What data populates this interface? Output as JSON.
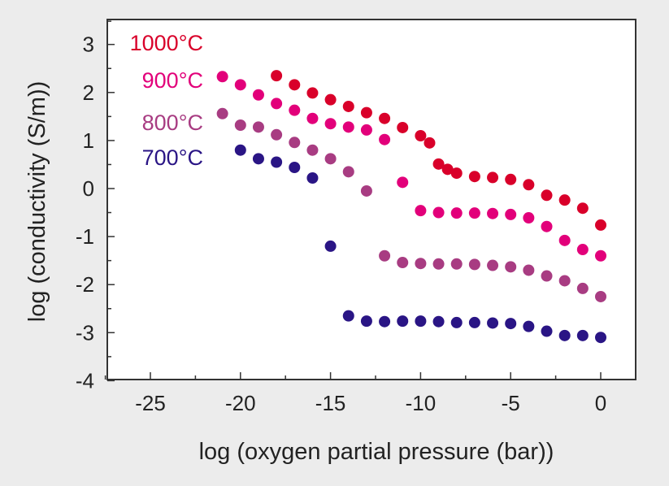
{
  "chart_data": {
    "type": "scatter",
    "xlabel": "log (oxygen partial pressure (bar))",
    "ylabel": "log (conductivity (S/m))",
    "xlim": [
      -27.5,
      1.8
    ],
    "ylim": [
      -4,
      3.5
    ],
    "xticks": [
      -25,
      -20,
      -15,
      -10,
      -5,
      0
    ],
    "xtick_labels": [
      "-25",
      "-20",
      "-15",
      "-10",
      "-5",
      "0"
    ],
    "yticks": [
      3,
      2,
      1,
      0,
      -1,
      -2,
      -3,
      -4
    ],
    "ytick_labels": [
      "3",
      "2",
      "1",
      "0",
      "-1",
      "-2",
      "-3",
      "-4"
    ],
    "grid": false,
    "legend_placement": "top-left",
    "series": [
      {
        "name": "1000°C",
        "color": "#d9002a",
        "x": [
          -18,
          -17,
          -16,
          -15,
          -14,
          -13,
          -12,
          -11,
          -10,
          -9.5,
          -9,
          -8.5,
          -8,
          -7,
          -6,
          -5,
          -4,
          -3,
          -2,
          -1,
          0
        ],
        "y": [
          2.35,
          2.16,
          1.99,
          1.85,
          1.71,
          1.58,
          1.46,
          1.27,
          1.1,
          0.95,
          0.51,
          0.4,
          0.32,
          0.25,
          0.23,
          0.19,
          0.08,
          -0.14,
          -0.24,
          -0.41,
          -0.76
        ]
      },
      {
        "name": "900°C",
        "color": "#e2007a",
        "x": [
          -21,
          -20,
          -19,
          -18,
          -17,
          -16,
          -15,
          -14,
          -13,
          -12,
          -11,
          -10,
          -9,
          -8,
          -7,
          -6,
          -5,
          -4,
          -3,
          -2,
          -1,
          0
        ],
        "y": [
          2.33,
          2.16,
          1.95,
          1.77,
          1.63,
          1.46,
          1.35,
          1.28,
          1.22,
          1.02,
          0.13,
          -0.46,
          -0.5,
          -0.51,
          -0.51,
          -0.52,
          -0.54,
          -0.61,
          -0.79,
          -1.08,
          -1.27,
          -1.4
        ]
      },
      {
        "name": "800°C",
        "color": "#a83c82",
        "x": [
          -21,
          -20,
          -19,
          -18,
          -17,
          -16,
          -15,
          -14,
          -13,
          -12,
          -11,
          -10,
          -9,
          -8,
          -7,
          -6,
          -5,
          -4,
          -3,
          -2,
          -1,
          0
        ],
        "y": [
          1.56,
          1.32,
          1.28,
          1.12,
          0.96,
          0.8,
          0.62,
          0.35,
          -0.05,
          -1.4,
          -1.54,
          -1.56,
          -1.57,
          -1.57,
          -1.58,
          -1.6,
          -1.63,
          -1.7,
          -1.82,
          -1.92,
          -2.08,
          -2.25
        ]
      },
      {
        "name": "700°C",
        "color": "#2a1585",
        "x": [
          -20,
          -19,
          -18,
          -17,
          -16,
          -15,
          -14,
          -13,
          -12,
          -11,
          -10,
          -9,
          -8,
          -7,
          -6,
          -5,
          -4,
          -3,
          -2,
          -1,
          0
        ],
        "y": [
          0.8,
          0.62,
          0.55,
          0.44,
          0.22,
          -1.2,
          -2.65,
          -2.76,
          -2.77,
          -2.76,
          -2.76,
          -2.77,
          -2.79,
          -2.79,
          -2.8,
          -2.81,
          -2.87,
          -2.97,
          -3.06,
          -3.06,
          -3.1
        ]
      }
    ]
  }
}
